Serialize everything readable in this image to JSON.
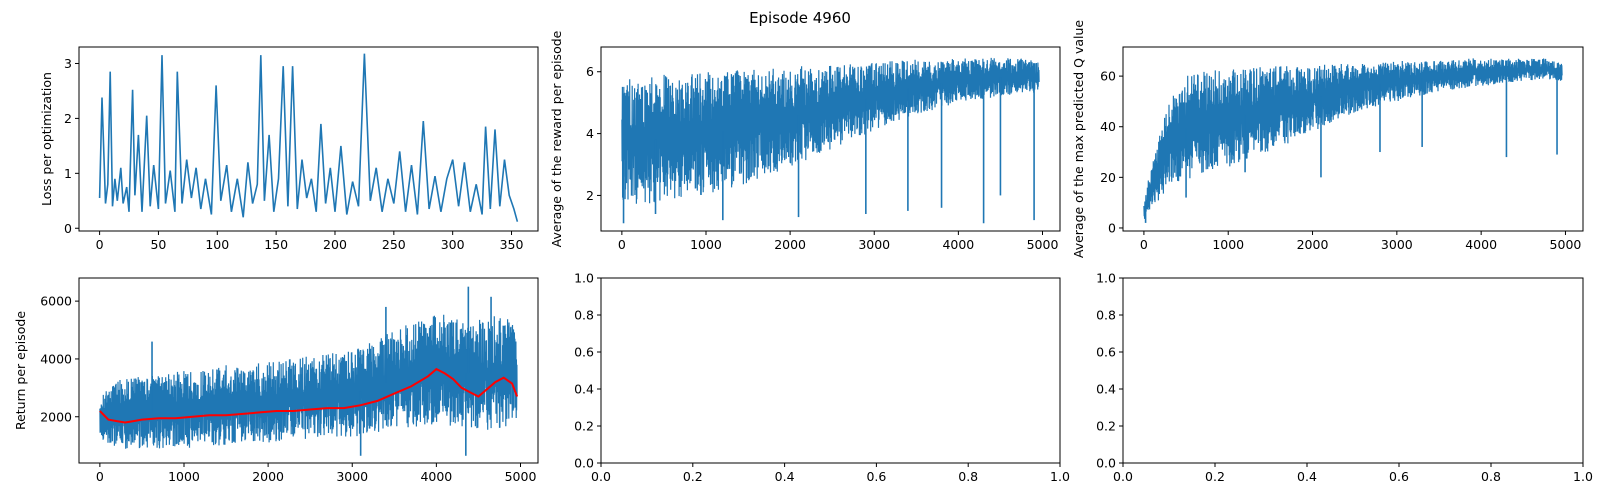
{
  "figure": {
    "title": "Episode 4960"
  },
  "colors": {
    "series": "#1f77b4",
    "moving_average": "#ff0000",
    "axes": "#000000"
  },
  "chart_data": [
    {
      "type": "line",
      "id": "loss",
      "ylabel": "Loss per optimization",
      "xlabel": "",
      "xlim": [
        -17.5,
        372.5
      ],
      "ylim": [
        -0.05,
        3.3
      ],
      "xticks": [
        0,
        50,
        100,
        150,
        200,
        250,
        300,
        350
      ],
      "yticks": [
        0,
        1,
        2,
        3
      ],
      "series": [
        {
          "x": [
            0,
            2,
            5,
            7,
            9,
            11,
            13,
            15,
            18,
            20,
            23,
            25,
            28,
            30,
            33,
            36,
            40,
            43,
            46,
            50,
            53,
            56,
            60,
            64,
            66,
            70,
            74,
            78,
            82,
            86,
            90,
            95,
            99,
            103,
            108,
            112,
            117,
            122,
            126,
            130,
            134,
            137,
            140,
            144,
            148,
            152,
            156,
            160,
            164,
            168,
            172,
            176,
            180,
            184,
            188,
            192,
            196,
            200,
            205,
            210,
            215,
            220,
            225,
            230,
            235,
            240,
            245,
            250,
            255,
            260,
            265,
            270,
            275,
            280,
            285,
            290,
            295,
            300,
            305,
            310,
            315,
            320,
            325,
            328,
            332,
            336,
            340,
            344,
            348,
            352,
            355
          ],
          "values": [
            0.55,
            2.38,
            0.45,
            0.8,
            2.85,
            0.4,
            0.9,
            0.5,
            1.1,
            0.45,
            0.75,
            0.3,
            2.52,
            0.6,
            1.7,
            0.3,
            2.05,
            0.4,
            1.15,
            0.35,
            3.15,
            0.45,
            1.05,
            0.3,
            2.85,
            0.45,
            1.25,
            0.55,
            1.1,
            0.35,
            0.9,
            0.25,
            2.6,
            0.5,
            1.15,
            0.3,
            0.9,
            0.2,
            1.2,
            0.45,
            0.8,
            3.15,
            0.5,
            1.7,
            0.3,
            0.9,
            2.95,
            0.4,
            2.95,
            0.35,
            1.25,
            0.55,
            0.9,
            0.3,
            1.9,
            0.45,
            1.1,
            0.3,
            1.5,
            0.25,
            0.85,
            0.4,
            3.18,
            0.5,
            1.1,
            0.3,
            0.9,
            0.45,
            1.4,
            0.3,
            1.15,
            0.25,
            1.95,
            0.35,
            0.95,
            0.3,
            0.9,
            1.25,
            0.4,
            1.2,
            0.3,
            0.8,
            0.25,
            1.85,
            0.35,
            1.8,
            0.4,
            1.25,
            0.6,
            0.35,
            0.12
          ]
        }
      ]
    },
    {
      "type": "line",
      "id": "reward",
      "ylabel": "Average of the reward per episode",
      "xlabel": "",
      "xlim": [
        -248,
        5208
      ],
      "ylim": [
        0.85,
        6.8
      ],
      "xticks": [
        0,
        1000,
        2000,
        3000,
        4000,
        5000
      ],
      "yticks": [
        2,
        4,
        6
      ],
      "x": [
        0,
        250,
        500,
        750,
        1000,
        1250,
        1500,
        1750,
        2000,
        2250,
        2500,
        2750,
        3000,
        3250,
        3500,
        3750,
        4000,
        4250,
        4500,
        4750,
        4960
      ],
      "upper": [
        5.8,
        5.8,
        5.9,
        5.9,
        6.0,
        6.0,
        6.1,
        6.1,
        6.15,
        6.2,
        6.2,
        6.25,
        6.3,
        6.35,
        6.4,
        6.4,
        6.45,
        6.45,
        6.45,
        6.45,
        6.3
      ],
      "lower": [
        1.8,
        1.7,
        1.8,
        1.9,
        2.0,
        2.2,
        2.4,
        2.6,
        2.9,
        3.2,
        3.5,
        3.8,
        4.1,
        4.4,
        4.6,
        4.8,
        5.0,
        5.1,
        5.2,
        5.3,
        5.3
      ],
      "spikes": [
        [
          20,
          1.1
        ],
        [
          400,
          1.4
        ],
        [
          1200,
          1.2
        ],
        [
          2100,
          1.3
        ],
        [
          2900,
          1.4
        ],
        [
          3400,
          1.5
        ],
        [
          3800,
          1.6
        ],
        [
          4300,
          1.1
        ],
        [
          4500,
          2.0
        ],
        [
          4900,
          1.2
        ]
      ]
    },
    {
      "type": "line",
      "id": "qvalue",
      "ylabel": "Average of the max predicted Q value",
      "xlabel": "",
      "xlim": [
        -248,
        5208
      ],
      "ylim": [
        -1.2,
        71.5
      ],
      "xticks": [
        0,
        1000,
        2000,
        3000,
        4000,
        5000
      ],
      "yticks": [
        0,
        20,
        40,
        60
      ],
      "x": [
        0,
        100,
        200,
        300,
        400,
        500,
        750,
        1000,
        1250,
        1500,
        1750,
        2000,
        2250,
        2500,
        2750,
        3000,
        3250,
        3500,
        3750,
        4000,
        4250,
        4500,
        4750,
        4960
      ],
      "upper": [
        12,
        25,
        40,
        50,
        55,
        60,
        62,
        63,
        63,
        64,
        64,
        64,
        65,
        65,
        65,
        66,
        66,
        66,
        67,
        67,
        67,
        67,
        67,
        65
      ],
      "lower": [
        2,
        8,
        12,
        15,
        17,
        19,
        21,
        24,
        27,
        30,
        34,
        38,
        42,
        45,
        48,
        50,
        52,
        54,
        55,
        56,
        57,
        58,
        59,
        58
      ],
      "spikes": [
        [
          20,
          2
        ],
        [
          500,
          12
        ],
        [
          1200,
          22
        ],
        [
          2100,
          20
        ],
        [
          2800,
          30
        ],
        [
          3300,
          32
        ],
        [
          4300,
          28
        ],
        [
          4900,
          29
        ]
      ]
    },
    {
      "type": "line",
      "id": "return",
      "ylabel": "Return per episode",
      "xlabel": "",
      "xlim": [
        -248,
        5208
      ],
      "ylim": [
        400,
        6800
      ],
      "xticks": [
        0,
        1000,
        2000,
        3000,
        4000,
        5000
      ],
      "yticks": [
        2000,
        4000,
        6000
      ],
      "x": [
        0,
        250,
        500,
        750,
        1000,
        1250,
        1500,
        1750,
        2000,
        2250,
        2500,
        2750,
        3000,
        3250,
        3500,
        3750,
        4000,
        4250,
        4500,
        4750,
        4960
      ],
      "upper": [
        2800,
        3300,
        3400,
        3500,
        3600,
        3700,
        3800,
        3800,
        3900,
        4000,
        4100,
        4200,
        4300,
        4600,
        5000,
        5300,
        5600,
        5500,
        5400,
        5500,
        5300
      ],
      "lower": [
        1200,
        900,
        800,
        900,
        900,
        1000,
        1000,
        1100,
        1100,
        1200,
        1200,
        1300,
        1300,
        1400,
        1500,
        1600,
        1700,
        1600,
        1500,
        1600,
        1700
      ],
      "spikes": [
        [
          620,
          4600
        ],
        [
          3400,
          5800
        ],
        [
          4380,
          6500
        ],
        [
          4650,
          6150
        ],
        [
          3100,
          650
        ],
        [
          4350,
          650
        ]
      ],
      "moving_average": {
        "x": [
          0,
          100,
          200,
          300,
          400,
          500,
          700,
          900,
          1100,
          1300,
          1500,
          1700,
          1900,
          2100,
          2300,
          2500,
          2700,
          2900,
          3100,
          3300,
          3500,
          3700,
          3900,
          4000,
          4100,
          4200,
          4300,
          4400,
          4500,
          4600,
          4700,
          4800,
          4900,
          4960
        ],
        "values": [
          2200,
          1900,
          1850,
          1800,
          1850,
          1900,
          1950,
          1950,
          2000,
          2050,
          2050,
          2100,
          2150,
          2200,
          2200,
          2250,
          2300,
          2300,
          2400,
          2550,
          2800,
          3050,
          3400,
          3650,
          3500,
          3300,
          3000,
          2850,
          2700,
          2950,
          3200,
          3350,
          3150,
          2700
        ]
      }
    },
    {
      "type": "line",
      "id": "empty1",
      "ylabel": "",
      "xlabel": "",
      "xlim": [
        0,
        1
      ],
      "ylim": [
        0,
        1
      ],
      "xtick_labels": [
        "0.0",
        "0.2",
        "0.4",
        "0.6",
        "0.8",
        "1.0"
      ],
      "ytick_labels": [
        "0.0",
        "0.2",
        "0.4",
        "0.6",
        "0.8",
        "1.0"
      ]
    },
    {
      "type": "line",
      "id": "empty2",
      "ylabel": "",
      "xlabel": "",
      "xlim": [
        0,
        1
      ],
      "ylim": [
        0,
        1
      ],
      "xtick_labels": [
        "0.0",
        "0.2",
        "0.4",
        "0.6",
        "0.8",
        "1.0"
      ],
      "ytick_labels": [
        "0.0",
        "0.2",
        "0.4",
        "0.6",
        "0.8",
        "1.0"
      ]
    }
  ]
}
